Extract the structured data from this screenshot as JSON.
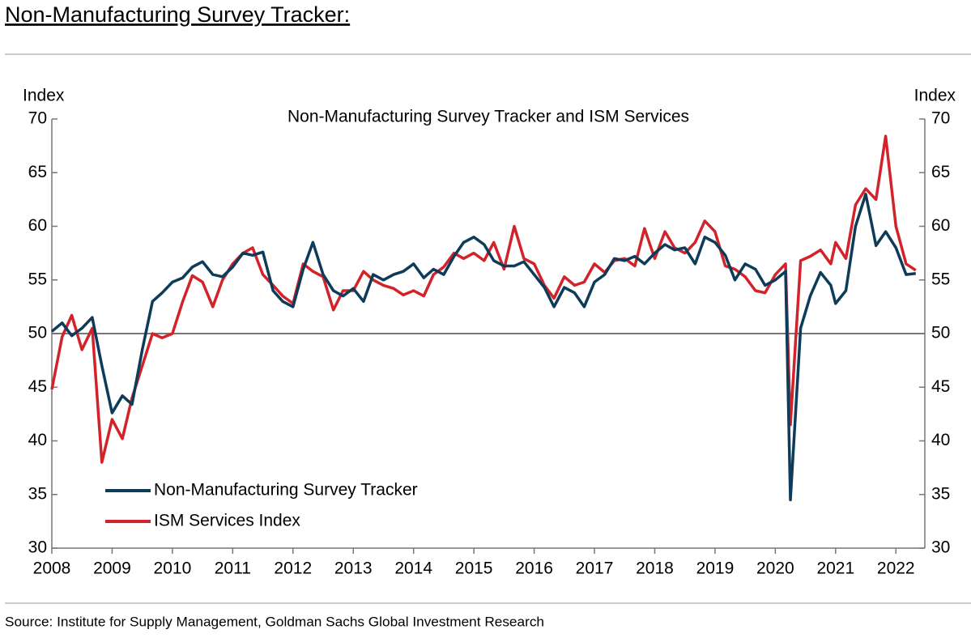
{
  "header": {
    "title": "Non-Manufacturing Survey Tracker:"
  },
  "chart_data": {
    "type": "line",
    "title": "Non-Manufacturing Survey Tracker and ISM Services",
    "y_label": "Index",
    "y2_label": "Index",
    "x": [
      2008,
      2008.17,
      2008.33,
      2008.5,
      2008.67,
      2008.83,
      2009,
      2009.17,
      2009.33,
      2009.5,
      2009.67,
      2009.83,
      2010,
      2010.17,
      2010.33,
      2010.5,
      2010.67,
      2010.83,
      2011,
      2011.17,
      2011.33,
      2011.5,
      2011.67,
      2011.83,
      2012,
      2012.17,
      2012.33,
      2012.5,
      2012.67,
      2012.83,
      2013,
      2013.17,
      2013.33,
      2013.5,
      2013.67,
      2013.83,
      2014,
      2014.17,
      2014.33,
      2014.5,
      2014.67,
      2014.83,
      2015,
      2015.17,
      2015.33,
      2015.5,
      2015.67,
      2015.83,
      2016,
      2016.17,
      2016.33,
      2016.5,
      2016.67,
      2016.83,
      2017,
      2017.17,
      2017.33,
      2017.5,
      2017.67,
      2017.83,
      2018,
      2018.17,
      2018.33,
      2018.5,
      2018.67,
      2018.83,
      2019,
      2019.17,
      2019.33,
      2019.5,
      2019.67,
      2019.83,
      2020,
      2020.17,
      2020.25,
      2020.42,
      2020.58,
      2020.75,
      2020.92,
      2021,
      2021.17,
      2021.33,
      2021.5,
      2021.67,
      2021.83,
      2022,
      2022.17,
      2022.33
    ],
    "series": [
      {
        "name": "Non-Manufacturing Survey Tracker",
        "color": "#0d3b5a",
        "values": [
          50.2,
          51.0,
          49.8,
          50.5,
          51.5,
          47.0,
          42.6,
          44.2,
          43.4,
          48.5,
          53.0,
          53.8,
          54.8,
          55.2,
          56.2,
          56.7,
          55.5,
          55.3,
          56.2,
          57.5,
          57.3,
          57.6,
          54.0,
          53.0,
          52.5,
          56.0,
          58.5,
          55.5,
          54.0,
          53.5,
          54.2,
          53.0,
          55.5,
          55.0,
          55.5,
          55.8,
          56.5,
          55.2,
          56.0,
          55.5,
          57.2,
          58.5,
          59.0,
          58.3,
          56.8,
          56.3,
          56.3,
          56.7,
          55.5,
          54.3,
          52.5,
          54.3,
          53.8,
          52.5,
          54.8,
          55.5,
          57.0,
          56.8,
          57.2,
          56.5,
          57.5,
          58.3,
          57.8,
          58.0,
          56.5,
          59.0,
          58.5,
          57.3,
          55.0,
          56.5,
          56.0,
          54.5,
          55.0,
          55.8,
          34.5,
          50.5,
          53.5,
          55.7,
          54.5,
          52.8,
          54.0,
          60.0,
          63.0,
          58.2,
          59.5,
          58.0,
          55.5,
          55.6
        ]
      },
      {
        "name": "ISM Services Index",
        "color": "#d2232a",
        "values": [
          44.8,
          49.7,
          51.7,
          48.5,
          50.5,
          38.0,
          42.0,
          40.2,
          44.0,
          47.0,
          50.0,
          49.6,
          50.0,
          53.0,
          55.4,
          54.8,
          52.5,
          55.0,
          56.5,
          57.5,
          58.0,
          55.5,
          54.5,
          53.5,
          52.8,
          56.5,
          55.8,
          55.3,
          52.2,
          54.0,
          54.0,
          55.8,
          55.0,
          54.5,
          54.2,
          53.6,
          54.0,
          53.5,
          55.5,
          56.2,
          57.5,
          57.0,
          57.5,
          56.8,
          58.5,
          56.0,
          60.0,
          57.0,
          56.5,
          54.5,
          53.3,
          55.3,
          54.5,
          54.8,
          56.5,
          55.7,
          56.8,
          57.0,
          56.3,
          59.8,
          57.0,
          59.5,
          58.0,
          57.5,
          58.5,
          60.5,
          59.5,
          56.3,
          56.0,
          55.3,
          54.0,
          53.8,
          55.5,
          56.5,
          41.5,
          56.8,
          57.2,
          57.8,
          56.5,
          58.5,
          57.0,
          62.0,
          63.5,
          62.5,
          68.4,
          60.0,
          56.5,
          55.9
        ]
      }
    ],
    "xlim": [
      2008,
      2022.48
    ],
    "xticks": [
      2008,
      2009,
      2010,
      2011,
      2012,
      2013,
      2014,
      2015,
      2016,
      2017,
      2018,
      2019,
      2020,
      2021,
      2022
    ],
    "ylim": [
      30,
      70
    ],
    "yticks": [
      30,
      35,
      40,
      45,
      50,
      55,
      60,
      65,
      70
    ],
    "y2lim": [
      30,
      70
    ],
    "y2ticks": [
      30,
      35,
      40,
      45,
      50,
      55,
      60,
      65,
      70
    ],
    "reference_line": 50,
    "legend": "lower left"
  },
  "footer": {
    "source": "Source: Institute for Supply Management, Goldman Sachs Global Investment Research"
  }
}
